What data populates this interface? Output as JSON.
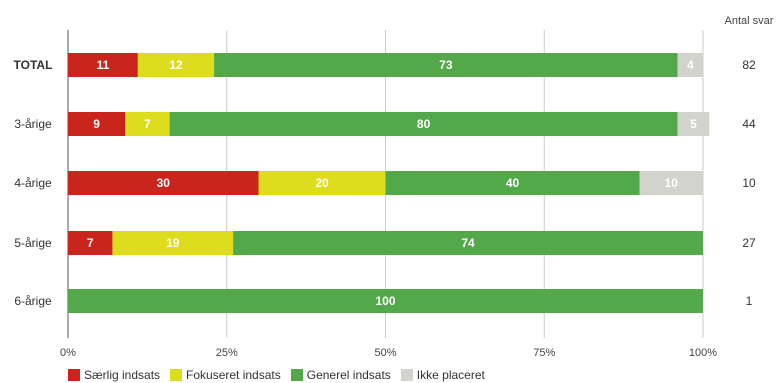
{
  "chart_data": {
    "type": "bar",
    "orientation": "horizontal",
    "stacked": true,
    "percent": true,
    "categories": [
      "TOTAL",
      "3-årige",
      "4-årige",
      "5-årige",
      "6-årige"
    ],
    "series": [
      {
        "name": "Særlig indsats",
        "color": "#c9251c",
        "values": [
          11,
          9,
          30,
          7,
          0
        ]
      },
      {
        "name": "Fokuseret indsats",
        "color": "#dddd1d",
        "values": [
          12,
          7,
          20,
          19,
          0
        ]
      },
      {
        "name": "Generel indsats",
        "color": "#53a84a",
        "values": [
          73,
          80,
          40,
          74,
          100
        ]
      },
      {
        "name": "Ikke placeret",
        "color": "#d3d3cd",
        "values": [
          4,
          5,
          10,
          0,
          0
        ]
      }
    ],
    "x_ticks": [
      "0%",
      "25%",
      "50%",
      "75%",
      "100%"
    ],
    "xlim": [
      0,
      100
    ],
    "grid": true,
    "legend_position": "bottom",
    "counts_header": "Antal svar",
    "counts": [
      82,
      44,
      10,
      27,
      1
    ]
  }
}
